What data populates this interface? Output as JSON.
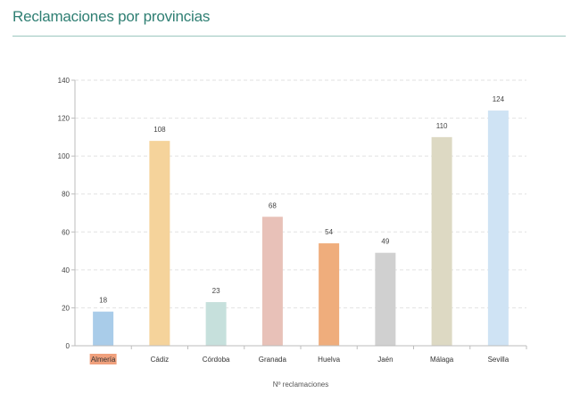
{
  "page": {
    "title": "Reclamaciones por provincias"
  },
  "chart_data": {
    "type": "bar",
    "categories": [
      "Almería",
      "Cádiz",
      "Córdoba",
      "Granada",
      "Huelva",
      "Jaén",
      "Málaga",
      "Sevilla"
    ],
    "values": [
      18,
      108,
      23,
      68,
      54,
      49,
      110,
      124
    ],
    "colors": [
      "#a9cce9",
      "#f5d39b",
      "#c6e0dc",
      "#e8c1b8",
      "#efad7c",
      "#d0d0d0",
      "#ddd9c3",
      "#cfe3f4"
    ],
    "highlight_category_color": "#f0a07c",
    "title": "",
    "xlabel": "Nº reclamaciones",
    "ylabel": "",
    "ylim": [
      0,
      140
    ],
    "yticks": [
      0,
      20,
      40,
      60,
      80,
      100,
      120,
      140
    ],
    "grid": true,
    "legend": "none"
  }
}
